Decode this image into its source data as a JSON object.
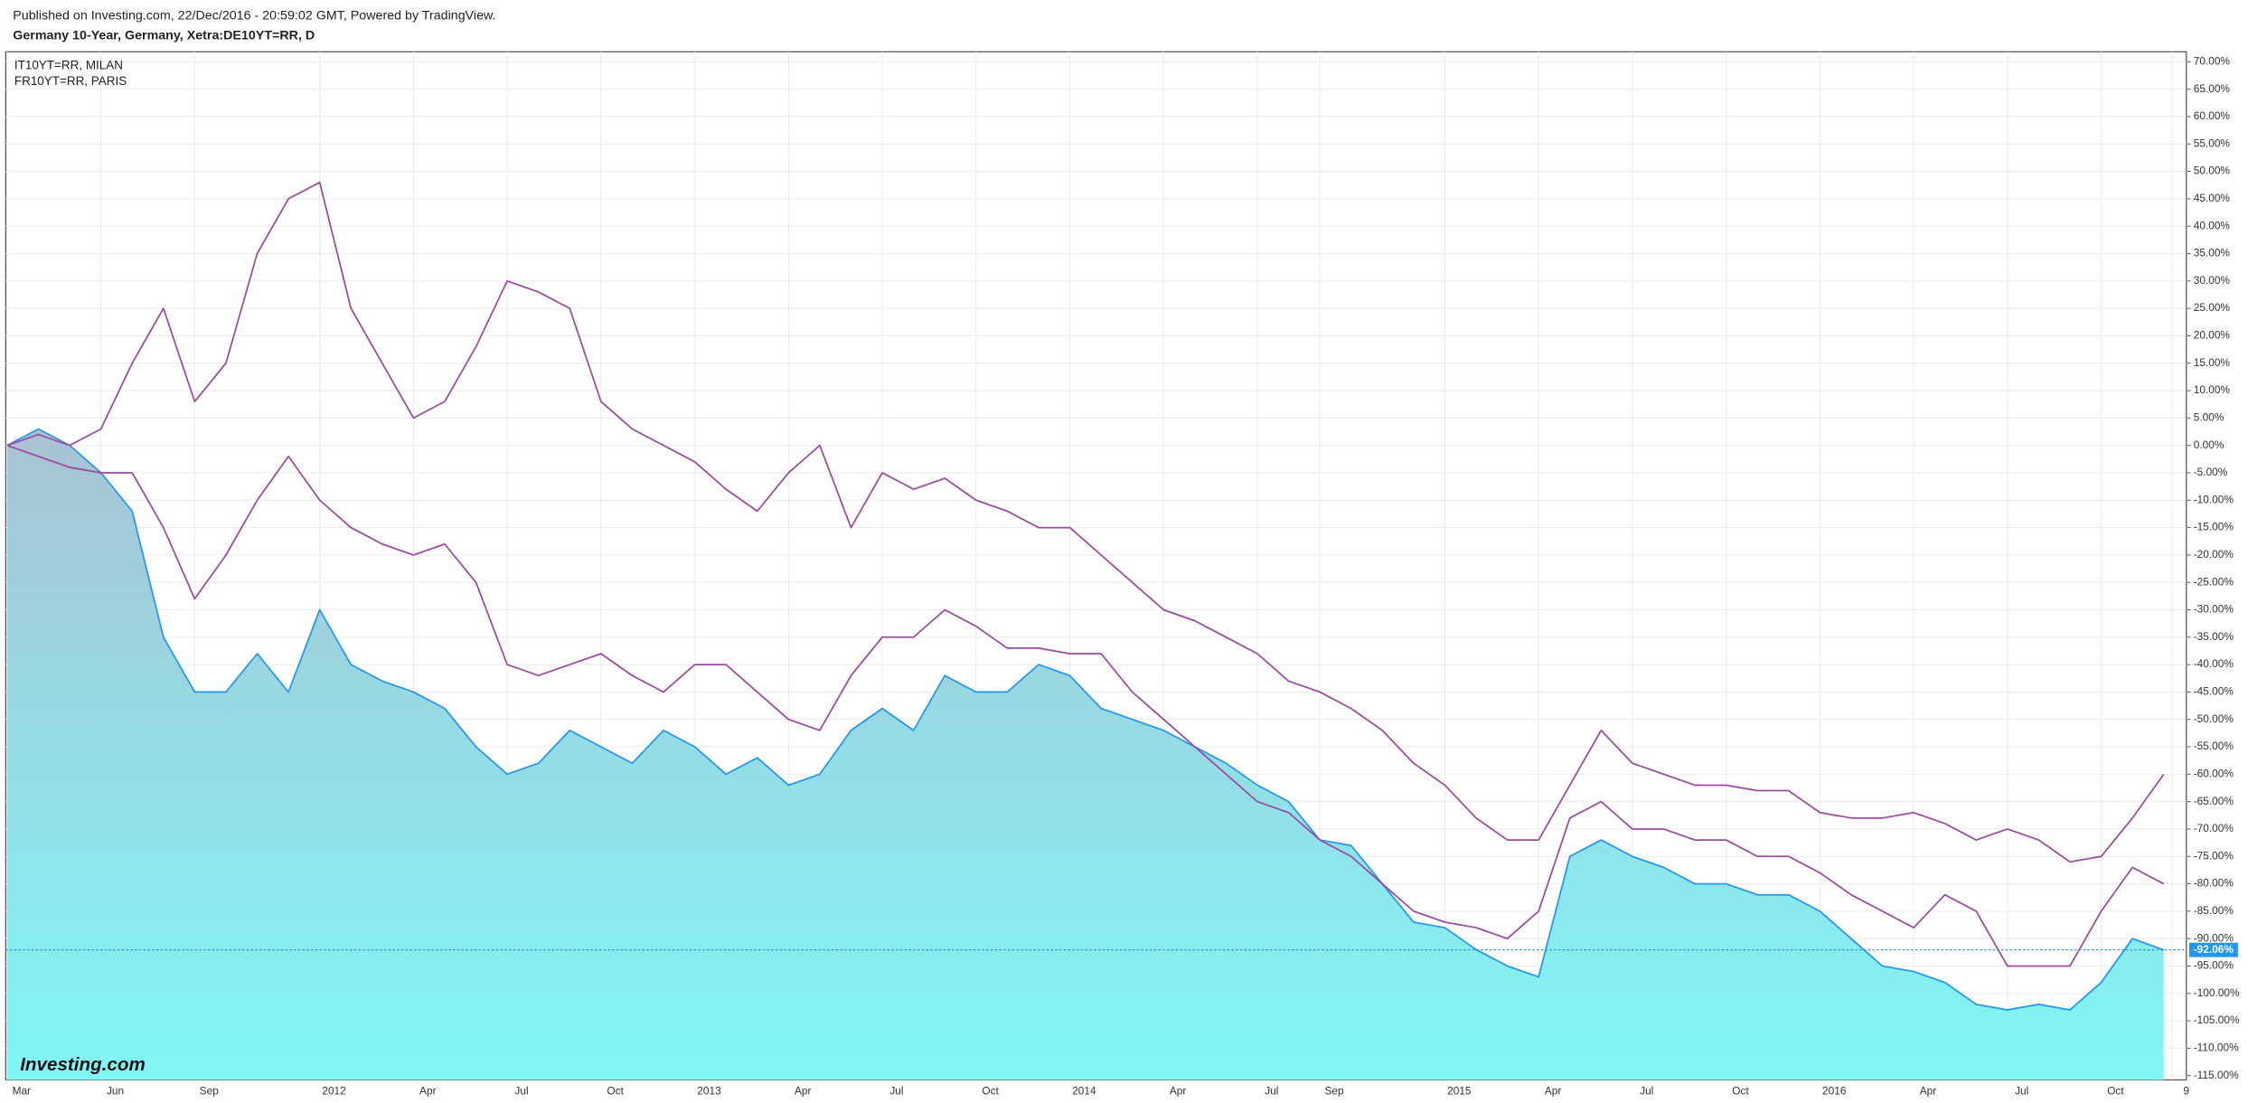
{
  "header": "Published on Investing.com, 22/Dec/2016 - 20:59:02 GMT, Powered by TradingView.",
  "watermark": "Investing.com",
  "chart_data": {
    "type": "line",
    "title": "Germany 10-Year, Germany, Xetra:DE10YT=RR, D",
    "x": [
      "2011-03",
      "2011-04",
      "2011-05",
      "2011-06",
      "2011-07",
      "2011-08",
      "2011-09",
      "2011-10",
      "2011-11",
      "2011-12",
      "2012-01",
      "2012-02",
      "2012-03",
      "2012-04",
      "2012-05",
      "2012-06",
      "2012-07",
      "2012-08",
      "2012-09",
      "2012-10",
      "2012-11",
      "2012-12",
      "2013-01",
      "2013-02",
      "2013-03",
      "2013-04",
      "2013-05",
      "2013-06",
      "2013-07",
      "2013-08",
      "2013-09",
      "2013-10",
      "2013-11",
      "2013-12",
      "2014-01",
      "2014-02",
      "2014-03",
      "2014-04",
      "2014-05",
      "2014-06",
      "2014-07",
      "2014-08",
      "2014-09",
      "2014-10",
      "2014-11",
      "2014-12",
      "2015-01",
      "2015-02",
      "2015-03",
      "2015-04",
      "2015-05",
      "2015-06",
      "2015-07",
      "2015-08",
      "2015-09",
      "2015-10",
      "2015-11",
      "2015-12",
      "2016-01",
      "2016-02",
      "2016-03",
      "2016-04",
      "2016-05",
      "2016-06",
      "2016-07",
      "2016-08",
      "2016-09",
      "2016-10",
      "2016-11",
      "2016-12"
    ],
    "series": [
      {
        "color": "#2196f3",
        "area": true,
        "values": [
          0,
          3,
          0,
          -5,
          -12,
          -35,
          -45,
          -45,
          -38,
          -45,
          -30,
          -40,
          -43,
          -45,
          -48,
          -55,
          -60,
          -58,
          -52,
          -55,
          -58,
          -52,
          -55,
          -60,
          -57,
          -62,
          -60,
          -52,
          -48,
          -52,
          -42,
          -45,
          -45,
          -40,
          -42,
          -48,
          -50,
          -52,
          -55,
          -58,
          -62,
          -65,
          -72,
          -73,
          -80,
          -87,
          -88,
          -92,
          -95,
          -97,
          -75,
          -72,
          -75,
          -77,
          -80,
          -80,
          -82,
          -82,
          -85,
          -90,
          -95,
          -96,
          -98,
          -102,
          -103,
          -102,
          -103,
          -98,
          -90,
          -92.06
        ],
        "value_labels": [
          null,
          null,
          null,
          null,
          null,
          null,
          null,
          null,
          null,
          null,
          null,
          null,
          null,
          null,
          null,
          null,
          null,
          null,
          null,
          null,
          null,
          null,
          null,
          null,
          null,
          null,
          null,
          null,
          null,
          null,
          null,
          null,
          null,
          null,
          null,
          null,
          null,
          null,
          null,
          null,
          null,
          null,
          null,
          null,
          null,
          null,
          null,
          null,
          null,
          null,
          null,
          null,
          null,
          null,
          null,
          null,
          null,
          null,
          null,
          null,
          null,
          null,
          null,
          null,
          null,
          null,
          null,
          null,
          null,
          "-92.06%"
        ]
      },
      {
        "name": "IT10YT=RR, MILAN",
        "color": "#9c4a9f",
        "values": [
          0,
          2,
          0,
          3,
          15,
          25,
          8,
          15,
          35,
          45,
          48,
          25,
          15,
          5,
          8,
          18,
          30,
          28,
          25,
          8,
          3,
          0,
          -3,
          -8,
          -12,
          -5,
          0,
          -15,
          -5,
          -8,
          -6,
          -10,
          -12,
          -15,
          -15,
          -20,
          -25,
          -30,
          -32,
          -35,
          -38,
          -43,
          -45,
          -48,
          -52,
          -58,
          -62,
          -68,
          -72,
          -72,
          -62,
          -52,
          -58,
          -60,
          -62,
          -62,
          -63,
          -63,
          -67,
          -68,
          -68,
          -67,
          -69,
          -72,
          -70,
          -72,
          -76,
          -75,
          -68,
          -60
        ]
      },
      {
        "name": "FR10YT=RR, PARIS",
        "color": "#9c4a9f",
        "values": [
          0,
          -2,
          -4,
          -5,
          -5,
          -15,
          -28,
          -20,
          -10,
          -2,
          -10,
          -15,
          -18,
          -20,
          -18,
          -25,
          -40,
          -42,
          -40,
          -38,
          -42,
          -45,
          -40,
          -40,
          -45,
          -50,
          -52,
          -42,
          -35,
          -35,
          -30,
          -33,
          -37,
          -37,
          -38,
          -38,
          -45,
          -50,
          -55,
          -60,
          -65,
          -67,
          -72,
          -75,
          -80,
          -85,
          -87,
          -88,
          -90,
          -85,
          -68,
          -65,
          -70,
          -70,
          -72,
          -72,
          -75,
          -75,
          -78,
          -82,
          -85,
          -88,
          -82,
          -85,
          -95,
          -95,
          -95,
          -85,
          -77,
          -80
        ]
      }
    ],
    "ylim": [
      -115,
      70
    ],
    "yticks": [
      {
        "value": 70,
        "label": "70.00%"
      },
      {
        "value": 65,
        "label": "65.00%"
      },
      {
        "value": 60,
        "label": "60.00%"
      },
      {
        "value": 55,
        "label": "55.00%"
      },
      {
        "value": 50,
        "label": "50.00%"
      },
      {
        "value": 45,
        "label": "45.00%"
      },
      {
        "value": 40,
        "label": "40.00%"
      },
      {
        "value": 35,
        "label": "35.00%"
      },
      {
        "value": 30,
        "label": "30.00%"
      },
      {
        "value": 25,
        "label": "25.00%"
      },
      {
        "value": 20,
        "label": "20.00%"
      },
      {
        "value": 15,
        "label": "15.00%"
      },
      {
        "value": 10,
        "label": "10.00%"
      },
      {
        "value": 5,
        "label": "5.00%"
      },
      {
        "value": 0,
        "label": "0.00%"
      },
      {
        "value": -5,
        "label": "-5.00%"
      },
      {
        "value": -10,
        "label": "-10.00%"
      },
      {
        "value": -15,
        "label": "-15.00%"
      },
      {
        "value": -20,
        "label": "-20.00%"
      },
      {
        "value": -25,
        "label": "-25.00%"
      },
      {
        "value": -30,
        "label": "-30.00%"
      },
      {
        "value": -35,
        "label": "-35.00%"
      },
      {
        "value": -40,
        "label": "-40.00%"
      },
      {
        "value": -45,
        "label": "-45.00%"
      },
      {
        "value": -50,
        "label": "-50.00%"
      },
      {
        "value": -55,
        "label": "-55.00%"
      },
      {
        "value": -60,
        "label": "-60.00%"
      },
      {
        "value": -65,
        "label": "-65.00%"
      },
      {
        "value": -70,
        "label": "-70.00%"
      },
      {
        "value": -75,
        "label": "-75.00%"
      },
      {
        "value": -80,
        "label": "-80.00%"
      },
      {
        "value": -85,
        "label": "-85.00%"
      },
      {
        "value": -90,
        "label": "-90.00%"
      },
      {
        "value": -95,
        "label": "-95.00%"
      },
      {
        "value": -100,
        "label": "-100.00%"
      },
      {
        "value": -105,
        "label": "-105.00%"
      },
      {
        "value": -110,
        "label": "-110.00%"
      },
      {
        "value": -115,
        "label": "-115.00%"
      }
    ],
    "xticks": [
      {
        "value": "2011-03",
        "label": "Mar"
      },
      {
        "value": "2011-06",
        "label": "Jun"
      },
      {
        "value": "2011-09",
        "label": "Sep"
      },
      {
        "value": "2012-01",
        "label": "2012"
      },
      {
        "value": "2012-04",
        "label": "Apr"
      },
      {
        "value": "2012-07",
        "label": "Jul"
      },
      {
        "value": "2012-10",
        "label": "Oct"
      },
      {
        "value": "2013-01",
        "label": "2013"
      },
      {
        "value": "2013-04",
        "label": "Apr"
      },
      {
        "value": "2013-07",
        "label": "Jul"
      },
      {
        "value": "2013-10",
        "label": "Oct"
      },
      {
        "value": "2014-01",
        "label": "2014"
      },
      {
        "value": "2014-04",
        "label": "Apr"
      },
      {
        "value": "2014-07",
        "label": "Jul"
      },
      {
        "value": "2014-09",
        "label": "Sep"
      },
      {
        "value": "2015-01",
        "label": "2015"
      },
      {
        "value": "2015-04",
        "label": "Apr"
      },
      {
        "value": "2015-07",
        "label": "Jul"
      },
      {
        "value": "2015-10",
        "label": "Oct"
      },
      {
        "value": "2016-01",
        "label": "2016"
      },
      {
        "value": "2016-04",
        "label": "Apr"
      },
      {
        "value": "2016-07",
        "label": "Jul"
      },
      {
        "value": "2016-10",
        "label": "Oct"
      },
      {
        "value": "2016-12-09",
        "label": "9"
      }
    ],
    "grid": true
  }
}
